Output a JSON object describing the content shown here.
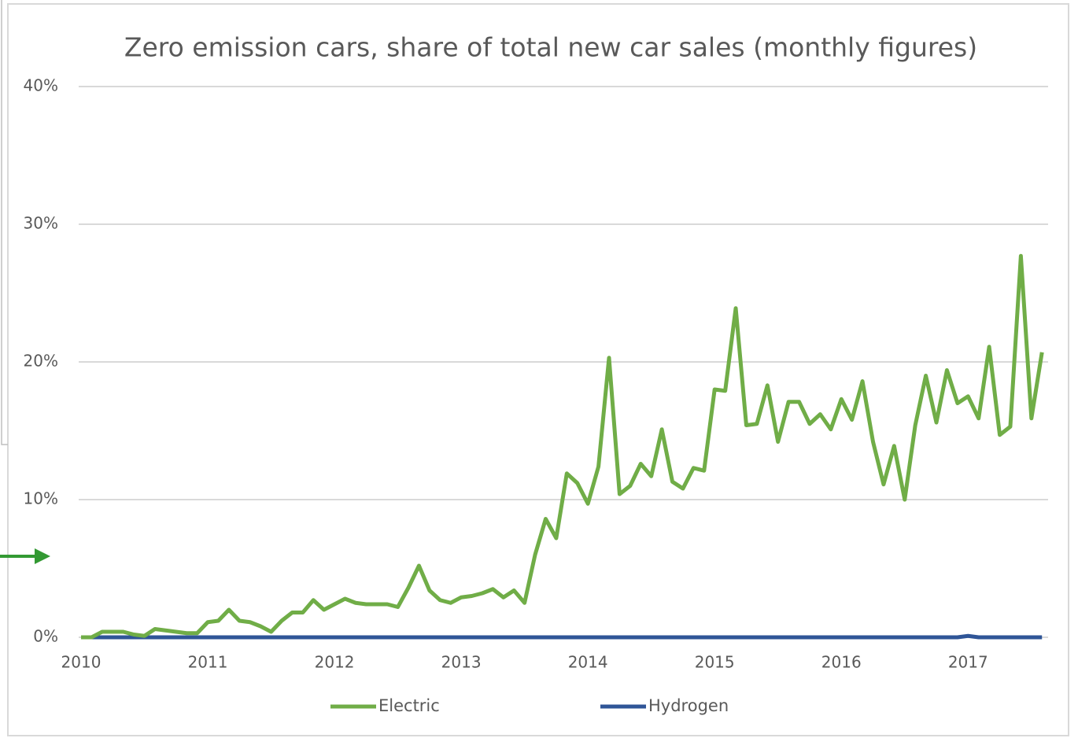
{
  "chart_data": {
    "type": "line",
    "title": "Zero emission cars, share of total new car sales (monthly figures)",
    "categories": [
      "2010",
      null,
      null,
      null,
      null,
      null,
      null,
      null,
      null,
      null,
      null,
      null,
      "2011",
      null,
      null,
      null,
      null,
      null,
      null,
      null,
      null,
      null,
      null,
      null,
      "2012",
      null,
      null,
      null,
      null,
      null,
      null,
      null,
      null,
      null,
      null,
      null,
      "2013",
      null,
      null,
      null,
      null,
      null,
      null,
      null,
      null,
      null,
      null,
      null,
      "2014",
      null,
      null,
      null,
      null,
      null,
      null,
      null,
      null,
      null,
      null,
      null,
      "2015",
      null,
      null,
      null,
      null,
      null,
      null,
      null,
      null,
      null,
      null,
      null,
      "2016",
      null,
      null,
      null,
      null,
      null,
      null,
      null,
      null,
      null,
      null,
      null,
      "2017",
      null,
      null,
      null,
      null,
      null,
      null,
      null
    ],
    "series": [
      {
        "name": "Electric",
        "color": "#70ad47",
        "values": [
          0,
          0,
          0.4,
          0.4,
          0.4,
          0.2,
          0.1,
          0.6,
          0.5,
          0.4,
          0.3,
          0.3,
          1.1,
          1.2,
          2.0,
          1.2,
          1.1,
          0.8,
          0.4,
          1.2,
          1.8,
          1.8,
          2.7,
          2.0,
          2.4,
          2.8,
          2.5,
          2.4,
          2.4,
          2.4,
          2.2,
          3.6,
          5.2,
          3.4,
          2.7,
          2.5,
          2.9,
          3.0,
          3.2,
          3.5,
          2.9,
          3.4,
          2.5,
          6.0,
          8.6,
          7.2,
          11.9,
          11.2,
          9.7,
          12.4,
          20.3,
          10.4,
          11.0,
          12.6,
          11.7,
          15.1,
          11.3,
          10.8,
          12.3,
          12.1,
          18.0,
          17.9,
          23.9,
          15.4,
          15.5,
          18.3,
          14.2,
          17.1,
          17.1,
          15.5,
          16.2,
          15.1,
          17.3,
          15.8,
          18.6,
          14.2,
          11.1,
          13.9,
          10.0,
          15.4,
          19.0,
          15.6,
          19.4,
          17.0,
          17.5,
          15.9,
          21.1,
          14.7,
          15.3,
          27.7,
          15.9,
          20.7
        ]
      },
      {
        "name": "Hydrogen",
        "color": "#2f5597",
        "values": [
          0,
          0,
          0,
          0,
          0,
          0,
          0,
          0,
          0,
          0,
          0,
          0,
          0,
          0,
          0,
          0,
          0,
          0,
          0,
          0,
          0,
          0,
          0,
          0,
          0,
          0,
          0,
          0,
          0,
          0,
          0,
          0,
          0,
          0,
          0,
          0,
          0,
          0,
          0,
          0,
          0,
          0,
          0,
          0,
          0,
          0,
          0,
          0,
          0,
          0,
          0,
          0,
          0,
          0,
          0,
          0,
          0,
          0,
          0,
          0,
          0,
          0,
          0,
          0,
          0,
          0,
          0,
          0,
          0,
          0,
          0,
          0,
          0,
          0,
          0,
          0,
          0,
          0,
          0,
          0,
          0,
          0,
          0,
          0,
          0.1,
          0,
          0,
          0,
          0,
          0,
          0,
          0
        ]
      }
    ],
    "ylim": [
      0,
      40
    ],
    "yticks": [
      {
        "value": 0,
        "label": "0%"
      },
      {
        "value": 10,
        "label": "10%"
      },
      {
        "value": 20,
        "label": "20%"
      },
      {
        "value": 30,
        "label": "30%"
      },
      {
        "value": 40,
        "label": "40%"
      }
    ],
    "grid": true,
    "legend": "bottom"
  }
}
